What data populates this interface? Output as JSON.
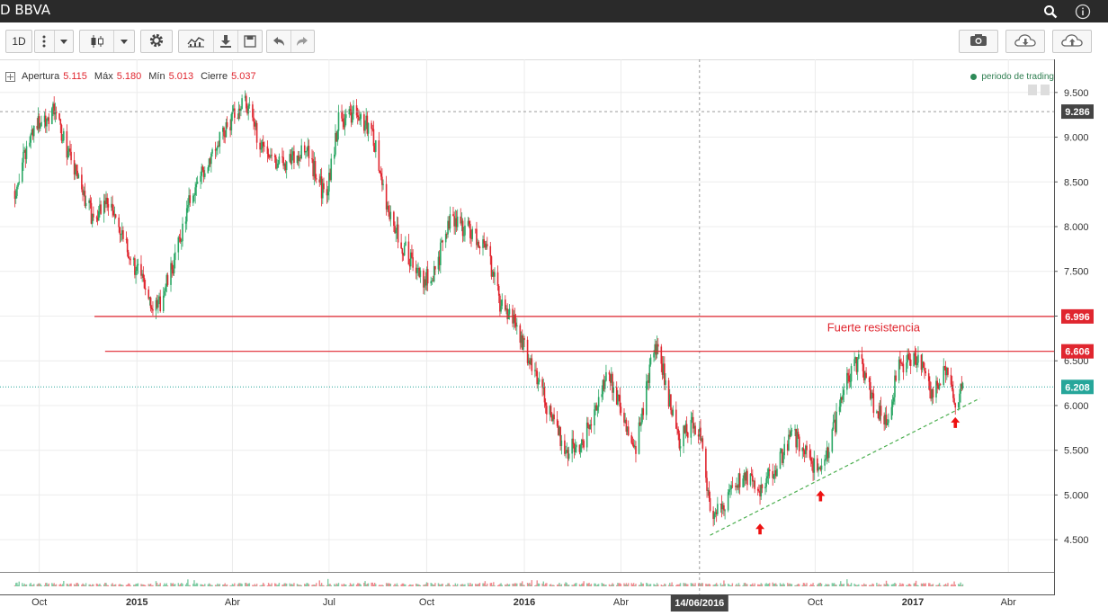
{
  "header": {
    "symbol": "D BBVA",
    "search_icon": "search-icon",
    "info_icon": "info-icon"
  },
  "toolbar": {
    "interval_label": "1D",
    "icons": [
      "more-vertical-icon",
      "chevron-down-icon",
      "candlestick-icon",
      "chevron-down-icon",
      "gear-icon",
      "indicators-icon",
      "download-icon",
      "save-icon",
      "undo-icon",
      "redo-icon",
      "camera-icon",
      "cloud-download-icon",
      "cloud-upload-icon"
    ]
  },
  "ohlc": {
    "open_label": "Apertura",
    "open": "5.115",
    "high_label": "Máx",
    "high": "5.180",
    "low_label": "Mín",
    "low": "5.013",
    "close_label": "Cierre",
    "close": "5.037"
  },
  "legend": {
    "label": "periodo de trading",
    "color": "#2d8a57"
  },
  "colors": {
    "up": "#2aa764",
    "down": "#e0262f",
    "resistance": "#e0262f",
    "trend": "#4caf50",
    "last_price": "#26a69a"
  },
  "chart_data": {
    "type": "candlestick",
    "title": "",
    "ylim": [
      4.2,
      9.87
    ],
    "y_ticks": [
      "4.500",
      "5.000",
      "5.500",
      "6.000",
      "6.500",
      "7.000",
      "7.500",
      "8.000",
      "8.500",
      "9.000",
      "9.500"
    ],
    "x_ticks": [
      "Oct",
      "2015",
      "Abr",
      "Jul",
      "Oct",
      "2016",
      "Abr",
      "14/06/2016",
      "Oct",
      "2017",
      "Abr"
    ],
    "price_path": [
      [
        "2014-09-08",
        8.4
      ],
      [
        "2014-09-25",
        9.1
      ],
      [
        "2014-10-15",
        9.3
      ],
      [
        "2014-11-01",
        8.7
      ],
      [
        "2014-11-20",
        8.1
      ],
      [
        "2014-12-05",
        8.3
      ],
      [
        "2014-12-20",
        7.8
      ],
      [
        "2015-01-10",
        7.3
      ],
      [
        "2015-01-20",
        7.05
      ],
      [
        "2015-02-05",
        7.6
      ],
      [
        "2015-02-20",
        8.3
      ],
      [
        "2015-03-15",
        8.9
      ],
      [
        "2015-04-01",
        9.2
      ],
      [
        "2015-04-12",
        9.45
      ],
      [
        "2015-04-25",
        9.0
      ],
      [
        "2015-05-15",
        8.7
      ],
      [
        "2015-06-10",
        8.85
      ],
      [
        "2015-06-28",
        8.3
      ],
      [
        "2015-07-10",
        9.2
      ],
      [
        "2015-07-25",
        9.25
      ],
      [
        "2015-08-10",
        9.1
      ],
      [
        "2015-08-25",
        8.2
      ],
      [
        "2015-09-10",
        7.75
      ],
      [
        "2015-09-28",
        7.4
      ],
      [
        "2015-10-08",
        7.5
      ],
      [
        "2015-10-25",
        8.1
      ],
      [
        "2015-11-10",
        7.95
      ],
      [
        "2015-11-25",
        7.8
      ],
      [
        "2015-12-10",
        7.1
      ],
      [
        "2015-12-22",
        6.95
      ],
      [
        "2016-01-10",
        6.4
      ],
      [
        "2016-01-25",
        5.9
      ],
      [
        "2016-02-10",
        5.5
      ],
      [
        "2016-02-25",
        5.6
      ],
      [
        "2016-03-08",
        6.0
      ],
      [
        "2016-03-20",
        6.4
      ],
      [
        "2016-04-05",
        5.8
      ],
      [
        "2016-04-15",
        5.5
      ],
      [
        "2016-04-28",
        6.4
      ],
      [
        "2016-05-05",
        6.7
      ],
      [
        "2016-05-25",
        5.6
      ],
      [
        "2016-06-08",
        5.8
      ],
      [
        "2016-06-16",
        5.7
      ],
      [
        "2016-06-24",
        4.75
      ],
      [
        "2016-07-10",
        4.95
      ],
      [
        "2016-07-25",
        5.2
      ],
      [
        "2016-08-10",
        5.05
      ],
      [
        "2016-08-25",
        5.3
      ],
      [
        "2016-09-10",
        5.7
      ],
      [
        "2016-09-25",
        5.4
      ],
      [
        "2016-10-05",
        5.2
      ],
      [
        "2016-10-20",
        5.8
      ],
      [
        "2016-11-01",
        6.3
      ],
      [
        "2016-11-12",
        6.55
      ],
      [
        "2016-11-25",
        6.0
      ],
      [
        "2016-12-08",
        5.85
      ],
      [
        "2016-12-18",
        6.4
      ],
      [
        "2016-12-28",
        6.5
      ],
      [
        "2017-01-10",
        6.45
      ],
      [
        "2017-01-20",
        6.1
      ],
      [
        "2017-02-01",
        6.4
      ],
      [
        "2017-02-10",
        6.0
      ],
      [
        "2017-02-17",
        6.2
      ]
    ],
    "resistance_levels": [
      {
        "value": 6.996,
        "label": "6.996",
        "from": "2014-11-22"
      },
      {
        "value": 6.606,
        "label": "6.606",
        "from": "2014-12-02"
      }
    ],
    "reference_levels": [
      {
        "value": 9.286,
        "label": "9.286",
        "style": "dashed"
      },
      {
        "value": 6.208,
        "label": "6.208",
        "style": "dotted"
      }
    ],
    "trendline": {
      "start": [
        "2016-06-24",
        4.55
      ],
      "end": [
        "2017-03-05",
        6.08
      ]
    },
    "vertical_marker": "2016-06-14",
    "annotations": [
      {
        "text": "Fuerte resistencia",
        "x": "2016-11-25",
        "y": 6.83
      }
    ],
    "markers": [
      {
        "type": "arrow-up",
        "x": "2016-08-10",
        "y": 4.68
      },
      {
        "type": "arrow-up",
        "x": "2016-10-06",
        "y": 5.05
      },
      {
        "type": "arrow-up",
        "x": "2017-02-10",
        "y": 5.87
      }
    ],
    "grid": true
  }
}
